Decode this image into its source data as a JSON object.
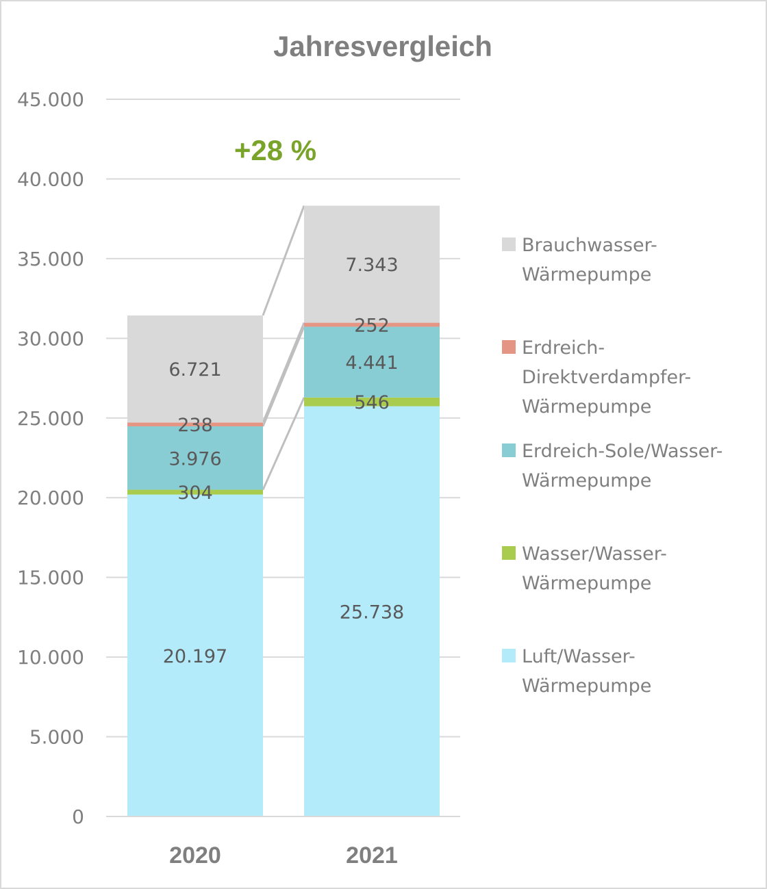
{
  "chart_data": {
    "type": "bar",
    "stacked": true,
    "title": "Jahresvergleich",
    "annotation": "+28 %",
    "categories": [
      "2020",
      "2021"
    ],
    "ylim": [
      0,
      45000
    ],
    "yticks": [
      0,
      5000,
      10000,
      15000,
      20000,
      25000,
      30000,
      35000,
      40000,
      45000
    ],
    "ytick_labels": [
      "0",
      "5.000",
      "10.000",
      "15.000",
      "20.000",
      "25.000",
      "30.000",
      "35.000",
      "40.000",
      "45.000"
    ],
    "grid": true,
    "legend_position": "right",
    "series": [
      {
        "name": "Luft/Wasser-Wärmepumpe",
        "legend_lines": [
          "Luft/Wasser-",
          "Wärmepumpe"
        ],
        "color": "#b3ebfb",
        "values": [
          20197,
          25738
        ],
        "labels": [
          "20.197",
          "25.738"
        ]
      },
      {
        "name": "Wasser/Wasser-Wärmepumpe",
        "legend_lines": [
          "Wasser/Wasser-",
          "Wärmepumpe"
        ],
        "color": "#a9cc4f",
        "values": [
          304,
          546
        ],
        "labels": [
          "304",
          "546"
        ]
      },
      {
        "name": "Erdreich-Sole/Wasser-Wärmepumpe",
        "legend_lines": [
          "Erdreich-Sole/Wasser-",
          "Wärmepumpe"
        ],
        "color": "#88cdd4",
        "values": [
          3976,
          4441
        ],
        "labels": [
          "3.976",
          "4.441"
        ]
      },
      {
        "name": "Erdreich-Direktverdampfer-Wärmepumpe",
        "legend_lines": [
          "Erdreich-",
          "Direktverdampfer-",
          "Wärmepumpe"
        ],
        "color": "#e49584",
        "values": [
          238,
          252
        ],
        "labels": [
          "238",
          "252"
        ]
      },
      {
        "name": "Brauchwasser-Wärmepumpe",
        "legend_lines": [
          "Brauchwasser-",
          "Wärmepumpe"
        ],
        "color": "#d9d9d9",
        "values": [
          6721,
          7343
        ],
        "labels": [
          "6.721",
          "7.343"
        ]
      }
    ]
  }
}
